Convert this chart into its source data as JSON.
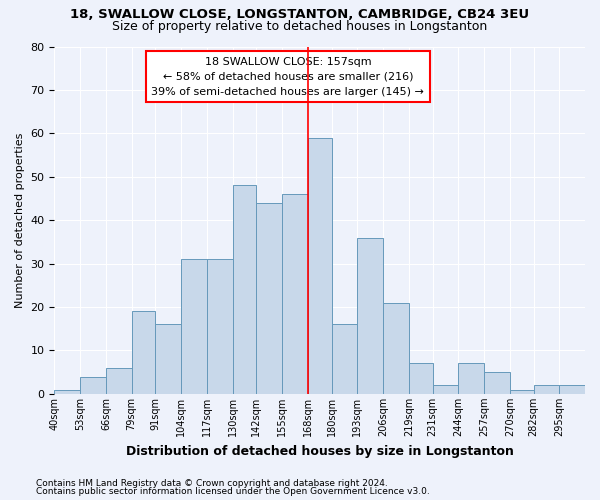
{
  "title1": "18, SWALLOW CLOSE, LONGSTANTON, CAMBRIDGE, CB24 3EU",
  "title2": "Size of property relative to detached houses in Longstanton",
  "xlabel": "Distribution of detached houses by size in Longstanton",
  "ylabel": "Number of detached properties",
  "bin_labels": [
    "40sqm",
    "53sqm",
    "66sqm",
    "79sqm",
    "91sqm",
    "104sqm",
    "117sqm",
    "130sqm",
    "142sqm",
    "155sqm",
    "168sqm",
    "180sqm",
    "193sqm",
    "206sqm",
    "219sqm",
    "231sqm",
    "244sqm",
    "257sqm",
    "270sqm",
    "282sqm",
    "295sqm"
  ],
  "bar_heights": [
    1,
    4,
    6,
    19,
    16,
    31,
    31,
    48,
    44,
    46,
    59,
    16,
    36,
    21,
    7,
    2,
    7,
    5,
    1,
    2,
    2
  ],
  "bar_color": "#c8d8ea",
  "bar_edge_color": "#6699bb",
  "bin_edges": [
    40,
    53,
    66,
    79,
    91,
    104,
    117,
    130,
    142,
    155,
    168,
    180,
    193,
    206,
    219,
    231,
    244,
    257,
    270,
    282,
    295,
    308
  ],
  "ref_line_x": 168,
  "annotation_title": "18 SWALLOW CLOSE: 157sqm",
  "annotation_line1": "← 58% of detached houses are smaller (216)",
  "annotation_line2": "39% of semi-detached houses are larger (145) →",
  "ylim": [
    0,
    80
  ],
  "yticks": [
    0,
    10,
    20,
    30,
    40,
    50,
    60,
    70,
    80
  ],
  "footnote1": "Contains HM Land Registry data © Crown copyright and database right 2024.",
  "footnote2": "Contains public sector information licensed under the Open Government Licence v3.0.",
  "bg_color": "#eef2fb",
  "grid_color": "#ffffff"
}
